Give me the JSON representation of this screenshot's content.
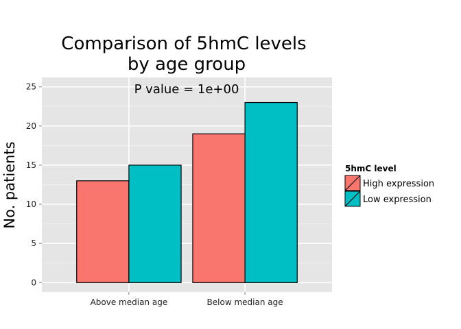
{
  "chart_data": {
    "type": "bar",
    "title_lines": [
      "Comparison of 5hmC levels",
      "by age group"
    ],
    "annotation": "P value = 1e+00",
    "xlabel": "",
    "ylabel": "No. patients",
    "categories": [
      "Above median age",
      "Below median age"
    ],
    "series": [
      {
        "name": "High expression",
        "color": "#F8766D",
        "values": [
          13,
          19
        ]
      },
      {
        "name": "Low expression",
        "color": "#00BFC4",
        "values": [
          15,
          23
        ]
      }
    ],
    "ylim": [
      -1.2,
      26.2
    ],
    "yticks": [
      0,
      5,
      10,
      15,
      20,
      25
    ],
    "grid": true,
    "legend": {
      "title": "5hmC level",
      "placement": "right"
    }
  }
}
